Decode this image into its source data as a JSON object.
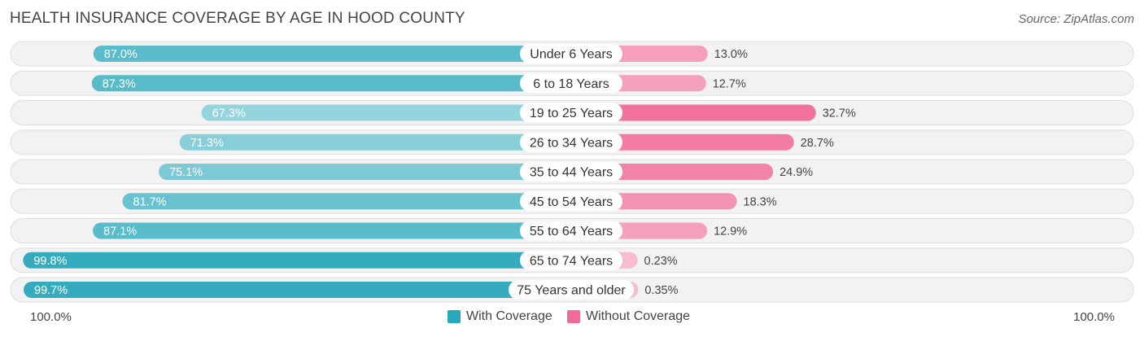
{
  "chart_data": {
    "type": "bar",
    "title": "HEALTH INSURANCE COVERAGE BY AGE IN HOOD COUNTY",
    "source": "Source: ZipAtlas.com",
    "categories": [
      "Under 6 Years",
      "6 to 18 Years",
      "19 to 25 Years",
      "26 to 34 Years",
      "35 to 44 Years",
      "45 to 54 Years",
      "55 to 64 Years",
      "65 to 74 Years",
      "75 Years and older"
    ],
    "series": [
      {
        "name": "With Coverage",
        "color": "#29a8bb",
        "values": [
          87.0,
          87.3,
          67.3,
          71.3,
          75.1,
          81.7,
          87.1,
          99.8,
          99.7
        ],
        "labels": [
          "87.0%",
          "87.3%",
          "67.3%",
          "71.3%",
          "75.1%",
          "81.7%",
          "87.1%",
          "99.8%",
          "99.7%"
        ]
      },
      {
        "name": "Without Coverage",
        "color": "#f06b97",
        "values": [
          13.0,
          12.7,
          32.7,
          28.7,
          24.9,
          18.3,
          12.9,
          0.23,
          0.35
        ],
        "labels": [
          "13.0%",
          "12.7%",
          "32.7%",
          "28.7%",
          "24.9%",
          "18.3%",
          "12.9%",
          "0.23%",
          "0.35%"
        ]
      }
    ],
    "xlim": [
      0,
      100
    ],
    "axis_left_label": "100.0%",
    "axis_right_label": "100.0%",
    "legend_position": "bottom-center"
  }
}
